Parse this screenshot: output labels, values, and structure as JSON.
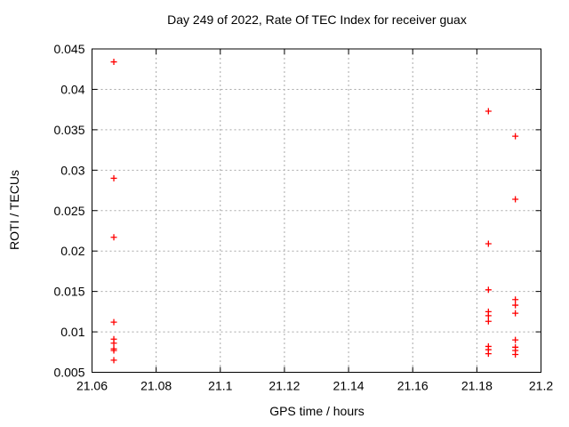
{
  "figure": {
    "background": "#ffffff",
    "frame_color": "#000000",
    "grid_color": "#a8a8a8"
  },
  "chart_data": {
    "type": "scatter",
    "title": "Day 249 of 2022, Rate Of TEC Index for receiver guax",
    "xlabel": "GPS time / hours",
    "ylabel": "ROTI / TECUs",
    "xlim": [
      21.06,
      21.2
    ],
    "ylim": [
      0.005,
      0.045
    ],
    "xticks": [
      21.06,
      21.08,
      21.1,
      21.12,
      21.14,
      21.16,
      21.18,
      21.2
    ],
    "xtick_labels": [
      "21.06",
      "21.08",
      "21.1",
      "21.12",
      "21.14",
      "21.16",
      "21.18",
      "21.2"
    ],
    "yticks": [
      0.005,
      0.01,
      0.015,
      0.02,
      0.025,
      0.03,
      0.035,
      0.04,
      0.045
    ],
    "ytick_labels": [
      "0.005",
      "0.01",
      "0.015",
      "0.02",
      "0.025",
      "0.03",
      "0.035",
      "0.04",
      "0.045"
    ],
    "grid": true,
    "legend": "none",
    "marker": "plus",
    "marker_color": "#ff0000",
    "series": [
      {
        "points": [
          [
            21.0668,
            0.0434
          ],
          [
            21.0668,
            0.029
          ],
          [
            21.0668,
            0.0217
          ],
          [
            21.0668,
            0.0112
          ],
          [
            21.0668,
            0.0091
          ],
          [
            21.0668,
            0.0086
          ],
          [
            21.0668,
            0.0079
          ],
          [
            21.0668,
            0.0077
          ],
          [
            21.0668,
            0.0065
          ],
          [
            21.1836,
            0.0373
          ],
          [
            21.1836,
            0.0209
          ],
          [
            21.1836,
            0.0152
          ],
          [
            21.1836,
            0.0125
          ],
          [
            21.1836,
            0.012
          ],
          [
            21.1836,
            0.0113
          ],
          [
            21.1836,
            0.0082
          ],
          [
            21.1836,
            0.0078
          ],
          [
            21.1836,
            0.0073
          ],
          [
            21.192,
            0.0342
          ],
          [
            21.192,
            0.0264
          ],
          [
            21.192,
            0.014
          ],
          [
            21.192,
            0.0133
          ],
          [
            21.192,
            0.0123
          ],
          [
            21.192,
            0.009
          ],
          [
            21.192,
            0.0081
          ],
          [
            21.192,
            0.0077
          ],
          [
            21.192,
            0.0072
          ]
        ]
      }
    ]
  }
}
